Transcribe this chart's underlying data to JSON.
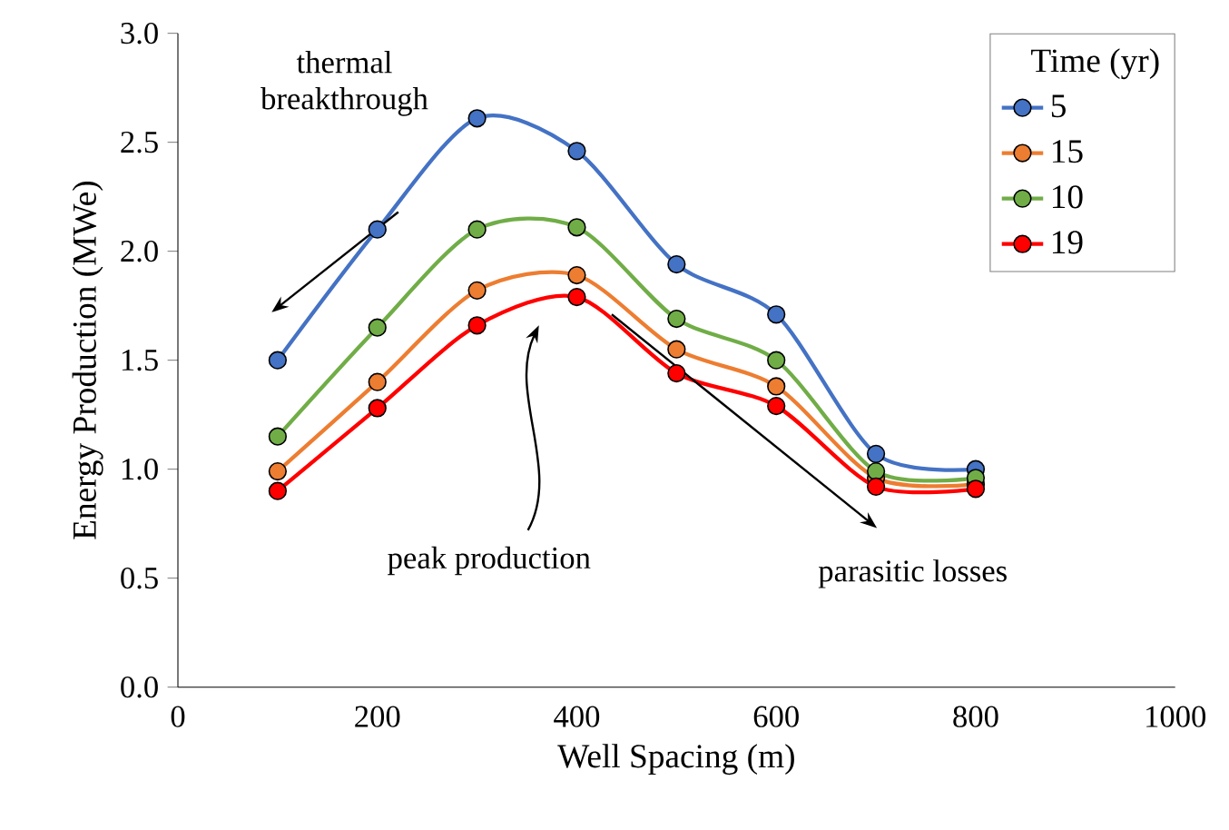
{
  "chart_data": {
    "type": "line",
    "xlabel": "Well Spacing (m)",
    "ylabel": "Energy Production (MWe)",
    "legend_title": "Time (yr)",
    "legend": "top right",
    "marker": "circle",
    "grid": false,
    "x": [
      100,
      200,
      300,
      400,
      500,
      600,
      700,
      800
    ],
    "xlim": [
      0,
      1000
    ],
    "xticks": [
      0,
      200,
      400,
      600,
      800,
      1000
    ],
    "ylim": [
      0,
      3
    ],
    "yticks": [
      {
        "value": 0,
        "label": "0.0"
      },
      {
        "value": 0.5,
        "label": "0.5"
      },
      {
        "value": 1,
        "label": "1.0"
      },
      {
        "value": 1.5,
        "label": "1.5"
      },
      {
        "value": 2,
        "label": "2.0"
      },
      {
        "value": 2.5,
        "label": "2.5"
      },
      {
        "value": 3,
        "label": "3.0"
      }
    ],
    "series": [
      {
        "name": "5",
        "color": "#4472c4",
        "values": [
          1.5,
          2.1,
          2.61,
          2.46,
          1.94,
          1.71,
          1.07,
          1.0
        ]
      },
      {
        "name": "15",
        "color": "#ed7d31",
        "values": [
          0.99,
          1.4,
          1.82,
          1.89,
          1.55,
          1.38,
          0.96,
          0.93
        ]
      },
      {
        "name": "10",
        "color": "#70ad47",
        "values": [
          1.15,
          1.65,
          2.1,
          2.11,
          1.69,
          1.5,
          0.99,
          0.96
        ]
      },
      {
        "name": "19",
        "color": "#ff0000",
        "values": [
          0.9,
          1.28,
          1.66,
          1.79,
          1.44,
          1.29,
          0.92,
          0.91
        ]
      }
    ],
    "annotations": [
      "thermal breakthrough",
      "peak production",
      "parasitic losses"
    ]
  }
}
